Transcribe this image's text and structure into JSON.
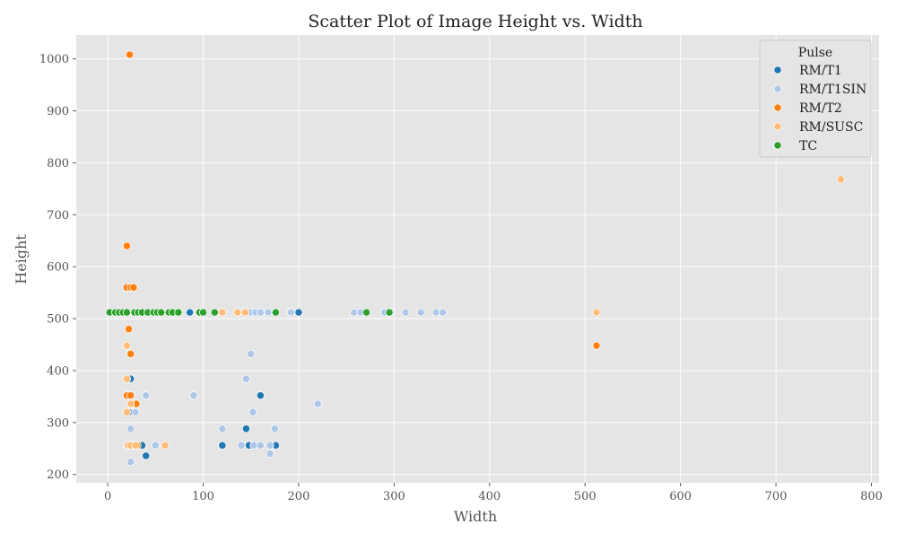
{
  "chart_data": {
    "type": "scatter",
    "title": "Scatter Plot of Image Height vs. Width",
    "xlabel": "Width",
    "ylabel": "Height",
    "xlim": [
      -33,
      808
    ],
    "ylim": [
      184,
      1046
    ],
    "xticks": [
      "0",
      "100",
      "200",
      "300",
      "400",
      "500",
      "600",
      "700",
      "800"
    ],
    "yticks": [
      "200",
      "300",
      "400",
      "500",
      "600",
      "700",
      "800",
      "900",
      "1000"
    ],
    "grid": true,
    "legend_title": "Pulse",
    "legend_position": "top-right",
    "series": [
      {
        "name": "RM/T1",
        "color": "#1f77b4",
        "points": [
          [
            24,
            384
          ],
          [
            22,
            320
          ],
          [
            26,
            256
          ],
          [
            36,
            256
          ],
          [
            40,
            236
          ],
          [
            86,
            512
          ],
          [
            120,
            256
          ],
          [
            145,
            288
          ],
          [
            148,
            256
          ],
          [
            160,
            352
          ],
          [
            176,
            256
          ],
          [
            200,
            512
          ]
        ]
      },
      {
        "name": "RM/T1SIN",
        "color": "#aec7e8",
        "points": [
          [
            20,
            256
          ],
          [
            24,
            288
          ],
          [
            24,
            224
          ],
          [
            29,
            320
          ],
          [
            40,
            352
          ],
          [
            50,
            256
          ],
          [
            90,
            352
          ],
          [
            120,
            288
          ],
          [
            140,
            256
          ],
          [
            145,
            384
          ],
          [
            150,
            432
          ],
          [
            152,
            320
          ],
          [
            153,
            256
          ],
          [
            150,
            512
          ],
          [
            155,
            512
          ],
          [
            160,
            512
          ],
          [
            160,
            256
          ],
          [
            168,
            512
          ],
          [
            170,
            240
          ],
          [
            170,
            256
          ],
          [
            175,
            288
          ],
          [
            192,
            512
          ],
          [
            220,
            336
          ],
          [
            258,
            512
          ],
          [
            265,
            512
          ],
          [
            290,
            512
          ],
          [
            312,
            512
          ],
          [
            328,
            512
          ],
          [
            344,
            512
          ],
          [
            351,
            512
          ]
        ]
      },
      {
        "name": "RM/T2",
        "color": "#ff7f0e",
        "points": [
          [
            23,
            1008
          ],
          [
            20,
            640
          ],
          [
            20,
            560
          ],
          [
            24,
            560
          ],
          [
            27,
            560
          ],
          [
            22,
            480
          ],
          [
            24,
            432
          ],
          [
            20,
            352
          ],
          [
            24,
            352
          ],
          [
            30,
            336
          ],
          [
            25,
            256
          ],
          [
            28,
            256
          ],
          [
            31,
            256
          ],
          [
            512,
            448
          ]
        ]
      },
      {
        "name": "RM/SUSC",
        "color": "#ffbb78",
        "points": [
          [
            20,
            448
          ],
          [
            20,
            384
          ],
          [
            24,
            336
          ],
          [
            20,
            320
          ],
          [
            21,
            256
          ],
          [
            24,
            256
          ],
          [
            29,
            256
          ],
          [
            60,
            256
          ],
          [
            95,
            512
          ],
          [
            120,
            512
          ],
          [
            136,
            512
          ],
          [
            144,
            512
          ],
          [
            512,
            512
          ],
          [
            768,
            768
          ]
        ]
      },
      {
        "name": "TC",
        "color": "#2ca02c",
        "points": [
          [
            2,
            512
          ],
          [
            8,
            512
          ],
          [
            12,
            512
          ],
          [
            16,
            512
          ],
          [
            20,
            512
          ],
          [
            28,
            512
          ],
          [
            32,
            512
          ],
          [
            36,
            512
          ],
          [
            42,
            512
          ],
          [
            48,
            512
          ],
          [
            52,
            512
          ],
          [
            56,
            512
          ],
          [
            64,
            512
          ],
          [
            68,
            512
          ],
          [
            74,
            512
          ],
          [
            96,
            512
          ],
          [
            100,
            512
          ],
          [
            112,
            512
          ],
          [
            176,
            512
          ],
          [
            271,
            512
          ],
          [
            295,
            512
          ]
        ]
      }
    ]
  }
}
